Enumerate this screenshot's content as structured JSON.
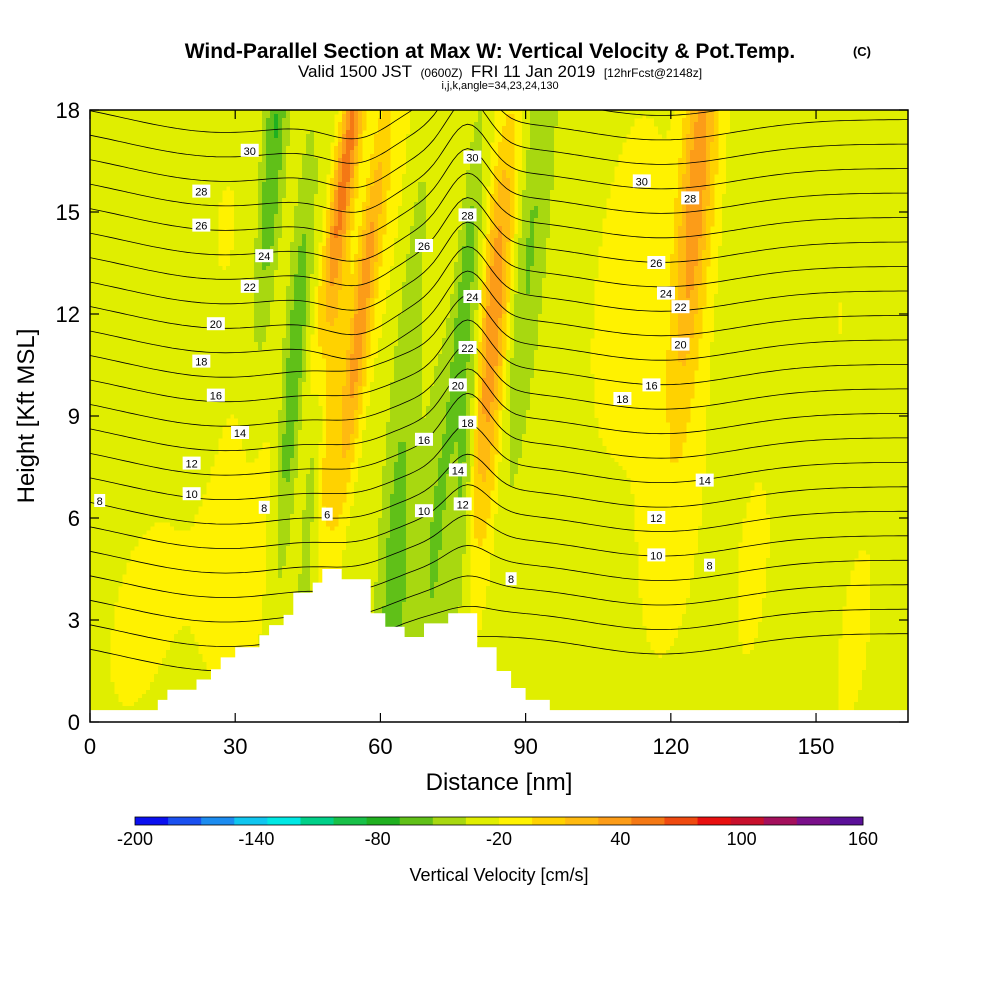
{
  "chart_data": {
    "type": "heatmap",
    "title": "Wind-Parallel Section at Max W: Vertical Velocity & Pot.Temp.",
    "title_mark": "(C)",
    "subtitle_prefix": "Valid 1500 JST",
    "subtitle_utc": "(0600Z)",
    "subtitle_date": "FRI 11 Jan 2019",
    "subtitle_fcst": "[12hrFcst@2148z]",
    "subtitle2": "i,j,k,angle=34,23,24,130",
    "xlabel": "Distance [nm]",
    "ylabel": "Height [Kft MSL]",
    "xlim": [
      0,
      169
    ],
    "ylim": [
      0,
      18
    ],
    "x_ticks": [
      0,
      30,
      60,
      90,
      120,
      150
    ],
    "y_ticks": [
      0,
      3,
      6,
      9,
      12,
      15,
      18
    ],
    "colorbar": {
      "label": "Vertical Velocity [cm/s]",
      "min": -200,
      "max": 160,
      "step": 20,
      "tick_values": [
        -200,
        -140,
        -80,
        -20,
        40,
        100,
        160
      ],
      "colors": [
        "#0a10f0",
        "#1a50f0",
        "#1c8cf0",
        "#10c6f0",
        "#00e8e4",
        "#00d088",
        "#18c048",
        "#20b020",
        "#60c018",
        "#a8d810",
        "#e0ee00",
        "#fff200",
        "#ffd200",
        "#ffba10",
        "#fc9c18",
        "#f47814",
        "#ef4a10",
        "#e81010",
        "#c8102c",
        "#a4105c",
        "#7a108a",
        "#5a1098"
      ]
    },
    "terrain": [
      [
        0,
        0.35
      ],
      [
        14,
        0.35
      ],
      [
        14,
        0.65
      ],
      [
        16,
        0.65
      ],
      [
        16,
        0.95
      ],
      [
        22,
        0.95
      ],
      [
        22,
        1.25
      ],
      [
        25,
        1.25
      ],
      [
        25,
        1.55
      ],
      [
        27,
        1.55
      ],
      [
        27,
        1.9
      ],
      [
        30,
        1.9
      ],
      [
        30,
        2.2
      ],
      [
        35,
        2.2
      ],
      [
        35,
        2.55
      ],
      [
        37,
        2.55
      ],
      [
        37,
        2.85
      ],
      [
        40,
        2.85
      ],
      [
        40,
        3.15
      ],
      [
        42,
        3.15
      ],
      [
        42,
        3.8
      ],
      [
        46,
        3.8
      ],
      [
        46,
        4.1
      ],
      [
        48,
        4.1
      ],
      [
        48,
        4.5
      ],
      [
        52,
        4.5
      ],
      [
        52,
        4.2
      ],
      [
        58,
        4.2
      ],
      [
        58,
        3.2
      ],
      [
        61,
        3.2
      ],
      [
        61,
        2.8
      ],
      [
        65,
        2.8
      ],
      [
        65,
        2.5
      ],
      [
        69,
        2.5
      ],
      [
        69,
        2.9
      ],
      [
        74,
        2.9
      ],
      [
        74,
        3.2
      ],
      [
        80,
        3.2
      ],
      [
        80,
        2.2
      ],
      [
        84,
        2.2
      ],
      [
        84,
        1.5
      ],
      [
        87,
        1.5
      ],
      [
        87,
        1.0
      ],
      [
        90,
        1.0
      ],
      [
        90,
        0.65
      ],
      [
        95,
        0.65
      ],
      [
        95,
        0.35
      ],
      [
        169,
        0.35
      ]
    ],
    "theta_labels": [
      {
        "x": 2,
        "y": 6.5,
        "text": "8"
      },
      {
        "x": 21,
        "y": 6.7,
        "text": "10"
      },
      {
        "x": 21,
        "y": 7.6,
        "text": "12"
      },
      {
        "x": 31,
        "y": 8.5,
        "text": "14"
      },
      {
        "x": 26,
        "y": 9.6,
        "text": "16"
      },
      {
        "x": 23,
        "y": 10.6,
        "text": "18"
      },
      {
        "x": 26,
        "y": 11.7,
        "text": "20"
      },
      {
        "x": 33,
        "y": 12.8,
        "text": "22"
      },
      {
        "x": 36,
        "y": 13.7,
        "text": "24"
      },
      {
        "x": 23,
        "y": 14.6,
        "text": "26"
      },
      {
        "x": 23,
        "y": 15.6,
        "text": "28"
      },
      {
        "x": 33,
        "y": 16.8,
        "text": "30"
      },
      {
        "x": 36,
        "y": 6.3,
        "text": "8"
      },
      {
        "x": 49,
        "y": 6.1,
        "text": "6"
      },
      {
        "x": 69,
        "y": 6.2,
        "text": "10"
      },
      {
        "x": 69,
        "y": 8.3,
        "text": "16"
      },
      {
        "x": 76,
        "y": 7.4,
        "text": "14"
      },
      {
        "x": 77,
        "y": 6.4,
        "text": "12"
      },
      {
        "x": 78,
        "y": 8.8,
        "text": "18"
      },
      {
        "x": 76,
        "y": 9.9,
        "text": "20"
      },
      {
        "x": 78,
        "y": 11.0,
        "text": "22"
      },
      {
        "x": 79,
        "y": 12.5,
        "text": "24"
      },
      {
        "x": 69,
        "y": 14.0,
        "text": "26"
      },
      {
        "x": 78,
        "y": 14.9,
        "text": "28"
      },
      {
        "x": 79,
        "y": 16.6,
        "text": "30"
      },
      {
        "x": 87,
        "y": 4.2,
        "text": "8"
      },
      {
        "x": 110,
        "y": 9.5,
        "text": "18"
      },
      {
        "x": 116,
        "y": 9.9,
        "text": "16"
      },
      {
        "x": 117,
        "y": 13.5,
        "text": "26"
      },
      {
        "x": 119,
        "y": 12.6,
        "text": "24"
      },
      {
        "x": 122,
        "y": 12.2,
        "text": "22"
      },
      {
        "x": 122,
        "y": 11.1,
        "text": "20"
      },
      {
        "x": 114,
        "y": 15.9,
        "text": "30"
      },
      {
        "x": 124,
        "y": 15.4,
        "text": "28"
      },
      {
        "x": 127,
        "y": 7.1,
        "text": "14"
      },
      {
        "x": 117,
        "y": 6.0,
        "text": "12"
      },
      {
        "x": 117,
        "y": 4.9,
        "text": "10"
      },
      {
        "x": 128,
        "y": 4.6,
        "text": "8"
      }
    ]
  }
}
